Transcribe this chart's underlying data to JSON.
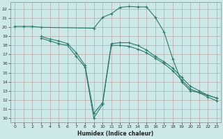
{
  "xlabel": "Humidex (Indice chaleur)",
  "bg_color": "#cce8e8",
  "line_color": "#2d7a6a",
  "xlim": [
    -0.5,
    23.5
  ],
  "ylim": [
    9.5,
    22.8
  ],
  "xticks": [
    0,
    1,
    2,
    3,
    4,
    5,
    6,
    7,
    8,
    9,
    10,
    11,
    12,
    13,
    14,
    15,
    16,
    17,
    18,
    19,
    20,
    21,
    22,
    23
  ],
  "yticks": [
    10,
    11,
    12,
    13,
    14,
    15,
    16,
    17,
    18,
    19,
    20,
    21,
    22
  ],
  "line1_x": [
    0,
    1,
    2,
    3,
    9,
    10,
    11,
    12,
    13,
    14,
    15,
    16,
    17,
    18,
    19,
    20,
    21,
    22,
    23
  ],
  "line1_y": [
    20.1,
    20.1,
    20.1,
    20.0,
    19.9,
    21.1,
    21.5,
    22.2,
    22.3,
    22.25,
    22.25,
    21.1,
    19.5,
    16.5,
    14.0,
    13.0,
    12.8,
    12.5,
    12.2
  ],
  "line2_x": [
    3,
    4,
    5,
    6,
    7,
    8,
    9,
    10,
    11,
    12,
    13,
    14,
    15,
    16,
    17,
    18,
    19,
    20,
    21,
    22,
    23
  ],
  "line2_y": [
    19.0,
    18.7,
    18.5,
    18.2,
    17.2,
    15.8,
    10.5,
    11.7,
    18.2,
    18.3,
    18.3,
    18.0,
    17.5,
    16.8,
    16.2,
    15.5,
    14.5,
    13.5,
    13.0,
    12.5,
    12.2
  ],
  "line3_x": [
    3,
    4,
    5,
    6,
    7,
    8,
    9,
    10,
    11,
    12,
    13,
    14,
    15,
    16,
    17,
    18,
    19,
    20,
    21,
    22,
    23
  ],
  "line3_y": [
    18.8,
    18.5,
    18.2,
    18.0,
    16.8,
    15.6,
    10.0,
    11.5,
    18.0,
    18.0,
    17.9,
    17.6,
    17.2,
    16.6,
    16.0,
    15.2,
    14.2,
    13.2,
    12.8,
    12.3,
    11.9
  ]
}
